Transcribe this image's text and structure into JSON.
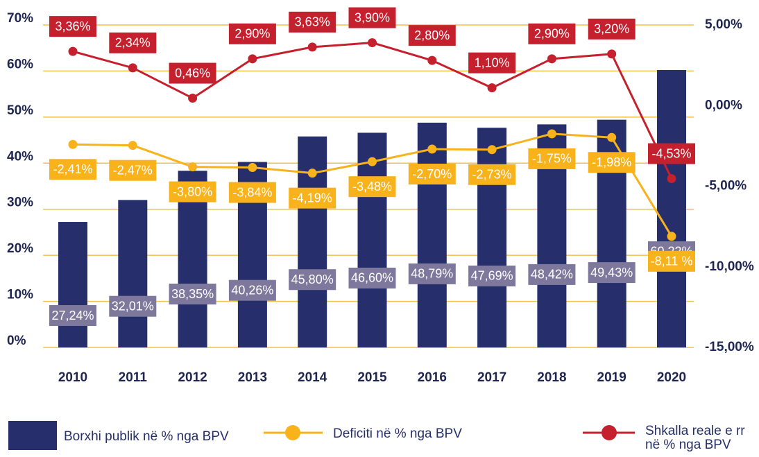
{
  "chart_data": {
    "type": "bar-line",
    "categories": [
      "2010",
      "2011",
      "2012",
      "2013",
      "2014",
      "2015",
      "2016",
      "2017",
      "2018",
      "2019",
      "2020"
    ],
    "ylim": [
      0,
      70
    ],
    "yticks": [
      {
        "value": 0,
        "label": "0%"
      },
      {
        "value": 10,
        "label": "10%"
      },
      {
        "value": 20,
        "label": "20%"
      },
      {
        "value": 30,
        "label": "30%"
      },
      {
        "value": 40,
        "label": "40%"
      },
      {
        "value": 50,
        "label": "50%"
      },
      {
        "value": 60,
        "label": "60%"
      },
      {
        "value": 70,
        "label": "70%"
      }
    ],
    "y2lim": [
      -15,
      5
    ],
    "y2ticks": [
      {
        "value": -15,
        "label": "-15,00%"
      },
      {
        "value": -10,
        "label": "-10,00%"
      },
      {
        "value": -5,
        "label": "-5,00%"
      },
      {
        "value": 0,
        "label": "0,00%"
      },
      {
        "value": 5,
        "label": "5,00%"
      }
    ],
    "grid": true,
    "series": [
      {
        "name": "Borxhi publik në % nga BPV",
        "type": "bar",
        "color": "#262f6b",
        "label_color": "#7d789c",
        "values": [
          27.24,
          32.01,
          38.35,
          40.26,
          45.8,
          46.6,
          48.79,
          47.69,
          48.42,
          49.43,
          60.22
        ],
        "value_labels": [
          "27,24%",
          "32,01%",
          "38,35%",
          "40,26%",
          "45,80%",
          "46,60%",
          "48,79%",
          "47,69%",
          "48,42%",
          "49,43%",
          "60,22%"
        ]
      },
      {
        "name": "Deficiti në % nga BPV",
        "type": "line",
        "axis": "y2",
        "color": "#f8b21c",
        "values": [
          -2.41,
          -2.47,
          -3.8,
          -3.84,
          -4.19,
          -3.48,
          -2.7,
          -2.73,
          -1.75,
          -1.98,
          -8.11
        ],
        "value_labels": [
          "-2,41%",
          "-2,47%",
          "-3,80%",
          "-3,84%",
          "-4,19%",
          "-3,48%",
          "-2,70%",
          "-2,73%",
          "-1,75%",
          "-1,98%",
          "-8,11 %"
        ]
      },
      {
        "name": "Shkalla reale e rr në % nga BPV",
        "type": "line",
        "axis": "y2",
        "color": "#c5202e",
        "values": [
          3.36,
          2.34,
          0.46,
          2.9,
          3.63,
          3.9,
          2.8,
          1.1,
          2.9,
          3.2,
          -4.53
        ],
        "value_labels": [
          "3,36%",
          "2,34%",
          "0,46%",
          "2,90%",
          "3,63%",
          "3,90%",
          "2,80%",
          "1,10%",
          "2,90%",
          "3,20%",
          "-4,53%"
        ]
      }
    ]
  }
}
